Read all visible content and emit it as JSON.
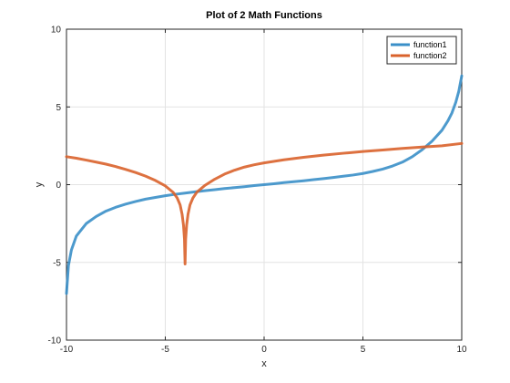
{
  "chart_data": {
    "type": "line",
    "title": "Plot of 2 Math Functions",
    "xlabel": "x",
    "ylabel": "y",
    "xlim": [
      -10,
      10
    ],
    "ylim": [
      -10,
      10
    ],
    "xticks": [
      -10,
      -5,
      0,
      5,
      10
    ],
    "yticks": [
      -10,
      -5,
      0,
      5,
      10
    ],
    "x_tick_labels": [
      "-10",
      "-5",
      "0",
      "5",
      "10"
    ],
    "y_tick_labels": [
      "-10",
      "-5",
      "0",
      "5",
      "10"
    ],
    "grid": true,
    "legend_position": "top-right",
    "series": [
      {
        "name": "function1",
        "color": "#3a8fc8",
        "points": [
          [
            -10,
            -7.0
          ],
          [
            -9.9,
            -5.2
          ],
          [
            -9.75,
            -4.2
          ],
          [
            -9.5,
            -3.3
          ],
          [
            -9.0,
            -2.5
          ],
          [
            -8.5,
            -2.05
          ],
          [
            -8.0,
            -1.7
          ],
          [
            -7.5,
            -1.45
          ],
          [
            -7.0,
            -1.25
          ],
          [
            -6.5,
            -1.08
          ],
          [
            -6.0,
            -0.93
          ],
          [
            -5.5,
            -0.82
          ],
          [
            -5.0,
            -0.71
          ],
          [
            -4.5,
            -0.62
          ],
          [
            -4.0,
            -0.54
          ],
          [
            -3.5,
            -0.46
          ],
          [
            -3.0,
            -0.39
          ],
          [
            -2.5,
            -0.32
          ],
          [
            -2.0,
            -0.25
          ],
          [
            -1.5,
            -0.19
          ],
          [
            -1.0,
            -0.13
          ],
          [
            -0.5,
            -0.06
          ],
          [
            0,
            0
          ],
          [
            0.5,
            0.06
          ],
          [
            1.0,
            0.13
          ],
          [
            1.5,
            0.19
          ],
          [
            2.0,
            0.25
          ],
          [
            2.5,
            0.32
          ],
          [
            3.0,
            0.39
          ],
          [
            3.5,
            0.46
          ],
          [
            4.0,
            0.54
          ],
          [
            4.5,
            0.62
          ],
          [
            5.0,
            0.72
          ],
          [
            5.5,
            0.85
          ],
          [
            6.0,
            1.0
          ],
          [
            6.5,
            1.2
          ],
          [
            7.0,
            1.45
          ],
          [
            7.5,
            1.8
          ],
          [
            8.0,
            2.25
          ],
          [
            8.5,
            2.8
          ],
          [
            9.0,
            3.5
          ],
          [
            9.3,
            4.1
          ],
          [
            9.5,
            4.6
          ],
          [
            9.7,
            5.3
          ],
          [
            9.85,
            6.0
          ],
          [
            10,
            7.0
          ]
        ]
      },
      {
        "name": "function2",
        "color": "#d9622b",
        "points": [
          [
            -10,
            1.8
          ],
          [
            -9.5,
            1.7
          ],
          [
            -9.0,
            1.58
          ],
          [
            -8.5,
            1.45
          ],
          [
            -8.0,
            1.32
          ],
          [
            -7.5,
            1.16
          ],
          [
            -7.0,
            0.98
          ],
          [
            -6.5,
            0.78
          ],
          [
            -6.0,
            0.55
          ],
          [
            -5.5,
            0.27
          ],
          [
            -5.0,
            -0.08
          ],
          [
            -4.6,
            -0.5
          ],
          [
            -4.4,
            -0.85
          ],
          [
            -4.25,
            -1.3
          ],
          [
            -4.15,
            -1.9
          ],
          [
            -4.08,
            -2.6
          ],
          [
            -4.03,
            -3.5
          ],
          [
            -4.0,
            -5.1
          ],
          [
            -3.97,
            -3.5
          ],
          [
            -3.92,
            -2.6
          ],
          [
            -3.85,
            -1.9
          ],
          [
            -3.75,
            -1.3
          ],
          [
            -3.6,
            -0.85
          ],
          [
            -3.4,
            -0.48
          ],
          [
            -3.0,
            -0.05
          ],
          [
            -2.5,
            0.35
          ],
          [
            -2.0,
            0.68
          ],
          [
            -1.5,
            0.93
          ],
          [
            -1.0,
            1.13
          ],
          [
            -0.5,
            1.28
          ],
          [
            0,
            1.4
          ],
          [
            1.0,
            1.6
          ],
          [
            2.0,
            1.76
          ],
          [
            3.0,
            1.9
          ],
          [
            4.0,
            2.02
          ],
          [
            5.0,
            2.13
          ],
          [
            6.0,
            2.23
          ],
          [
            7.0,
            2.33
          ],
          [
            8.0,
            2.42
          ],
          [
            9.0,
            2.5
          ],
          [
            10,
            2.65
          ]
        ]
      }
    ]
  }
}
